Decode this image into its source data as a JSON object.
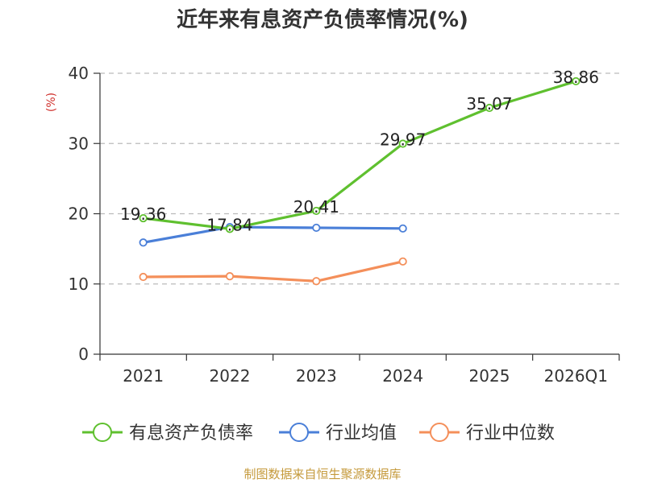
{
  "chart_data": {
    "type": "line",
    "title": "近年来有息资产负债率情况(%)",
    "ylabel": "(%)",
    "xlabel": "",
    "ylim": [
      0,
      40
    ],
    "yticks": [
      0,
      10,
      20,
      30,
      40
    ],
    "grid": true,
    "legend_position": "bottom",
    "categories": [
      "2021",
      "2022",
      "2023",
      "2024",
      "2025",
      "2026Q1"
    ],
    "series": [
      {
        "name": "有息资产负债率",
        "color": "#5fc02f",
        "values": [
          19.36,
          17.84,
          20.41,
          29.97,
          35.07,
          38.86
        ],
        "labels": [
          "19.36",
          "17.84",
          "20.41",
          "29.97",
          "35.07",
          "38.86"
        ],
        "show_labels": true
      },
      {
        "name": "行业均值",
        "color": "#4a7fd8",
        "values": [
          15.9,
          18.1,
          18.0,
          17.9,
          null,
          null
        ],
        "show_labels": false
      },
      {
        "name": "行业中位数",
        "color": "#f48f5a",
        "values": [
          11.0,
          11.1,
          10.4,
          13.2,
          null,
          null
        ],
        "show_labels": false
      }
    ],
    "source": "制图数据来自恒生聚源数据库",
    "colors": {
      "unit_label": "#d0312d",
      "source_text": "#c59a3c",
      "axis": "#333333",
      "grid": "#bbbbbb"
    }
  }
}
